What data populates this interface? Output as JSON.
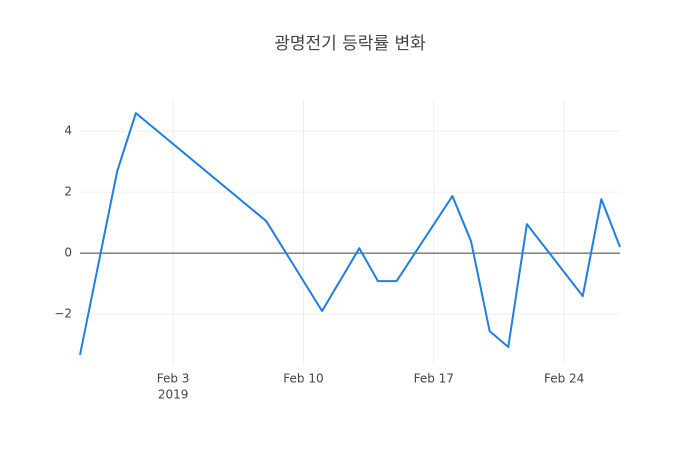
{
  "chart_data": {
    "type": "line",
    "title": "광명전기 등락률 변화",
    "x": [
      "2019-01-29",
      "2019-01-31",
      "2019-02-01",
      "2019-02-08",
      "2019-02-11",
      "2019-02-13",
      "2019-02-14",
      "2019-02-15",
      "2019-02-18",
      "2019-02-19",
      "2019-02-20",
      "2019-02-21",
      "2019-02-22",
      "2019-02-25",
      "2019-02-26",
      "2019-02-27"
    ],
    "series": [
      {
        "color": "#1f7fe0",
        "values": [
          -3.34,
          2.69,
          4.59,
          1.05,
          -1.9,
          0.16,
          -0.92,
          -0.92,
          1.87,
          0.39,
          -2.56,
          -3.08,
          0.95,
          -1.41,
          1.77,
          0.2
        ]
      }
    ],
    "xlim": [
      "2019-01-29",
      "2019-02-27"
    ],
    "xticks": [
      {
        "value": "2019-02-03",
        "label": "Feb 3"
      },
      {
        "value": "2019-02-10",
        "label": "Feb 10"
      },
      {
        "value": "2019-02-17",
        "label": "Feb 17"
      },
      {
        "value": "2019-02-24",
        "label": "Feb 24"
      }
    ],
    "x_year_label": "2019",
    "ylim": [
      -3.67,
      5.02
    ],
    "yticks": [
      {
        "value": -2,
        "label": "−2"
      },
      0,
      2,
      4
    ],
    "grid": true,
    "zero_line": true
  }
}
